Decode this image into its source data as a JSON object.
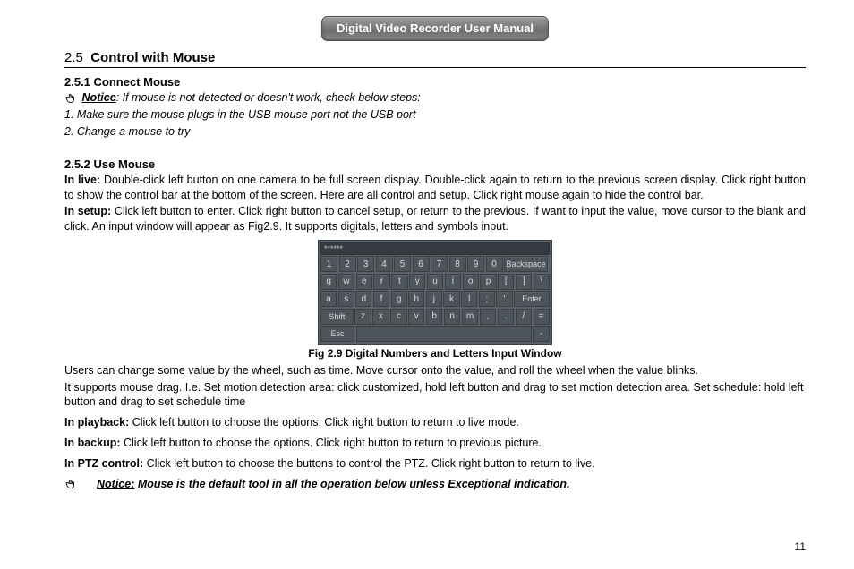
{
  "header": {
    "title": "Digital Video Recorder User Manual"
  },
  "section": {
    "num": "2.5",
    "title": "Control with Mouse"
  },
  "s251": {
    "heading": "2.5.1  Connect Mouse",
    "notice_label": "Notice",
    "notice_text": ": If mouse is not detected or doesn't work, check below steps:",
    "step1": "1. Make sure the mouse plugs in the USB mouse port not the USB port",
    "step2": "2. Change a mouse to try"
  },
  "s252": {
    "heading": "2.5.2  Use Mouse",
    "live_label": "In live:",
    "live_text": " Double-click left button on one camera to be full screen display. Double-click again to return to the previous screen display. Click right button to show the control bar at the bottom of the screen. Here are all control and setup. Click right mouse again to hide the control bar.",
    "setup_label": "In setup:",
    "setup_text": " Click left button to enter. Click right button to cancel setup, or return to the previous. If want to input the value, move cursor to the blank and click. An input window will appear as Fig2.9. It supports digitals, letters and symbols input.",
    "fig_caption": "Fig 2.9 Digital Numbers and Letters Input Window",
    "wheel_text": "Users can change some value by the wheel, such as time. Move cursor onto the value, and roll the wheel when the value blinks.",
    "drag_text": "It supports mouse drag. I.e. Set motion detection area: click customized, hold left button and drag to set motion detection area. Set schedule: hold left button and drag to set schedule time",
    "playback_label": "In playback:",
    "playback_text": " Click left button to choose the options. Click right button to return to live mode.",
    "backup_label": "In backup:",
    "backup_text": " Click left button to choose the options. Click right button to return to previous picture.",
    "ptz_label": "In PTZ control:",
    "ptz_text": " Click left button to choose the buttons to control the PTZ. Click right button to return to live.",
    "final_notice_label": "Notice:",
    "final_notice_text": " Mouse is the default tool in all the operation below unless Exceptional indication."
  },
  "keyboard": {
    "field_text": "******",
    "row1": [
      "1",
      "2",
      "3",
      "4",
      "5",
      "6",
      "7",
      "8",
      "9",
      "0"
    ],
    "backspace": "Backspace",
    "row2": [
      "q",
      "w",
      "e",
      "r",
      "t",
      "y",
      "u",
      "i",
      "o",
      "p",
      "[",
      "]",
      "\\"
    ],
    "row3": [
      "a",
      "s",
      "d",
      "f",
      "g",
      "h",
      "j",
      "k",
      "l",
      ";",
      "'"
    ],
    "enter": "Enter",
    "shift": "Shift",
    "row4": [
      "z",
      "x",
      "c",
      "v",
      "b",
      "n",
      "m",
      ",",
      ".",
      "/",
      "="
    ],
    "esc": "Esc",
    "dash": "-",
    "colors": {
      "kbd_bg": "#5a6168",
      "key_bg": "#4d545a",
      "key_border": "#3a3f44",
      "key_text": "#d8dce0",
      "field_bg": "#353b40"
    }
  },
  "page_number": "11"
}
